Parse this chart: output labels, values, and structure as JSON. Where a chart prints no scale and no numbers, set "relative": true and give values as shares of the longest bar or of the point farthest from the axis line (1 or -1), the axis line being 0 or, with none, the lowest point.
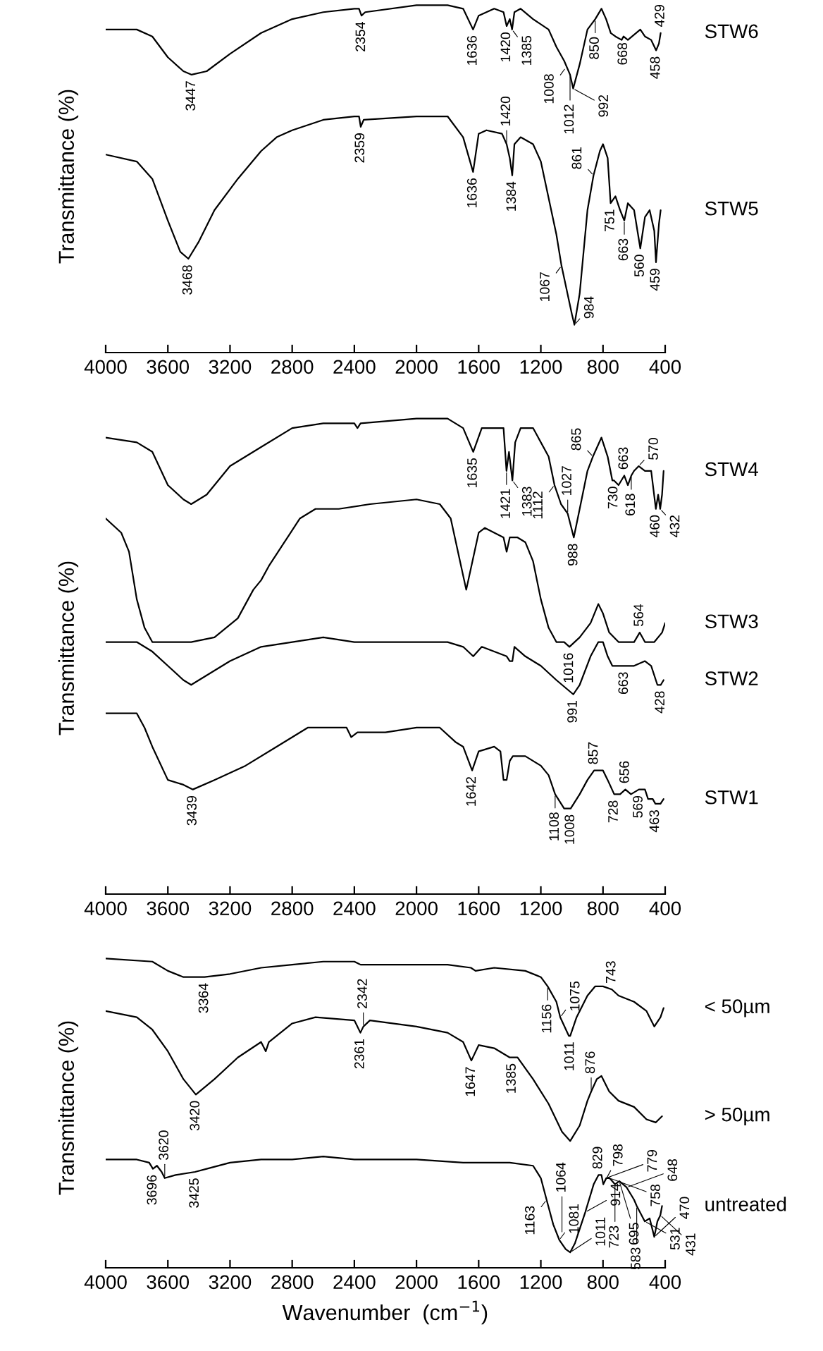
{
  "chart_data": [
    {
      "type": "line",
      "relative": true,
      "ylabel": "Transmittance (%)",
      "xlim": [
        4000,
        400
      ],
      "xticks": [
        4000,
        3600,
        3200,
        2800,
        2400,
        2000,
        1600,
        1200,
        800,
        400
      ],
      "tick_labels": "x",
      "series": [
        {
          "name": "STW6",
          "color": "#000000",
          "x": [
            4000,
            3800,
            3700,
            3600,
            3500,
            3447,
            3350,
            3200,
            3000,
            2800,
            2600,
            2400,
            2370,
            2354,
            2330,
            2000,
            1800,
            1700,
            1636,
            1600,
            1500,
            1440,
            1420,
            1400,
            1385,
            1370,
            1330,
            1250,
            1150,
            1100,
            1050,
            1012,
            992,
            950,
            900,
            850,
            810,
            780,
            750,
            720,
            680,
            668,
            640,
            560,
            530,
            490,
            458,
            440,
            429
          ],
          "values": [
            0.93,
            0.93,
            0.91,
            0.85,
            0.81,
            0.8,
            0.81,
            0.86,
            0.92,
            0.96,
            0.98,
            0.99,
            0.99,
            0.97,
            0.98,
            1.0,
            1.0,
            0.99,
            0.93,
            0.97,
            0.99,
            0.98,
            0.94,
            0.96,
            0.93,
            0.98,
            0.99,
            0.96,
            0.93,
            0.88,
            0.84,
            0.8,
            0.76,
            0.83,
            0.93,
            0.96,
            0.99,
            0.96,
            0.92,
            0.91,
            0.9,
            0.91,
            0.9,
            0.93,
            0.91,
            0.9,
            0.87,
            0.89,
            0.92
          ]
        },
        {
          "name": "STW5",
          "color": "#000000",
          "x": [
            4000,
            3800,
            3700,
            3600,
            3520,
            3468,
            3400,
            3300,
            3150,
            3000,
            2900,
            2800,
            2600,
            2400,
            2370,
            2359,
            2340,
            2000,
            1800,
            1700,
            1636,
            1600,
            1550,
            1450,
            1420,
            1400,
            1384,
            1370,
            1330,
            1250,
            1200,
            1100,
            1067,
            1000,
            984,
            950,
            900,
            861,
            820,
            800,
            770,
            751,
            720,
            690,
            663,
            640,
            600,
            560,
            530,
            500,
            470,
            459,
            440,
            429
          ],
          "values": [
            0.57,
            0.55,
            0.5,
            0.38,
            0.29,
            0.27,
            0.32,
            0.41,
            0.5,
            0.58,
            0.62,
            0.64,
            0.67,
            0.68,
            0.68,
            0.65,
            0.67,
            0.68,
            0.68,
            0.62,
            0.52,
            0.63,
            0.64,
            0.63,
            0.6,
            0.56,
            0.51,
            0.6,
            0.62,
            0.6,
            0.55,
            0.34,
            0.25,
            0.11,
            0.08,
            0.17,
            0.41,
            0.51,
            0.58,
            0.6,
            0.56,
            0.43,
            0.45,
            0.41,
            0.38,
            0.43,
            0.41,
            0.3,
            0.39,
            0.41,
            0.35,
            0.26,
            0.37,
            0.41
          ]
        }
      ],
      "annotations": [
        {
          "text": "3447",
          "x": 3447,
          "y": 0.8
        },
        {
          "text": "2354",
          "x": 2354,
          "y": 0.97
        },
        {
          "text": "1636",
          "x": 1636,
          "y": 0.93
        },
        {
          "text": "1420",
          "x": 1420,
          "y": 0.94
        },
        {
          "text": "1385",
          "x": 1385,
          "y": 0.93
        },
        {
          "text": "1008",
          "x": 1040,
          "y": 0.82
        },
        {
          "text": "1012",
          "x": 1012,
          "y": 0.8
        },
        {
          "text": "992",
          "x": 992,
          "y": 0.76
        },
        {
          "text": "850",
          "x": 850,
          "y": 0.96
        },
        {
          "text": "668",
          "x": 668,
          "y": 0.91
        },
        {
          "text": "458",
          "x": 458,
          "y": 0.87
        },
        {
          "text": "429",
          "x": 429,
          "y": 0.92
        },
        {
          "text": "3468",
          "x": 3468,
          "y": 0.27
        },
        {
          "text": "2359",
          "x": 2359,
          "y": 0.65
        },
        {
          "text": "1636",
          "x": 1636,
          "y": 0.52
        },
        {
          "text": "1420",
          "x": 1420,
          "y": 0.6
        },
        {
          "text": "1384",
          "x": 1384,
          "y": 0.51
        },
        {
          "text": "1067",
          "x": 1067,
          "y": 0.25
        },
        {
          "text": "984",
          "x": 984,
          "y": 0.08
        },
        {
          "text": "861",
          "x": 861,
          "y": 0.51
        },
        {
          "text": "751",
          "x": 751,
          "y": 0.43
        },
        {
          "text": "663",
          "x": 663,
          "y": 0.38
        },
        {
          "text": "560",
          "x": 560,
          "y": 0.3
        },
        {
          "text": "459",
          "x": 459,
          "y": 0.26
        }
      ]
    },
    {
      "type": "line",
      "relative": true,
      "ylabel": "Transmittance (%)",
      "xlim": [
        4000,
        400
      ],
      "xticks": [
        4000,
        3600,
        3200,
        2800,
        2400,
        2000,
        1600,
        1200,
        800,
        400
      ],
      "tick_labels": "x",
      "series": [
        {
          "name": "STW4",
          "color": "#000000",
          "x": [
            4000,
            3800,
            3700,
            3600,
            3500,
            3450,
            3350,
            3200,
            3000,
            2800,
            2600,
            2400,
            2380,
            2360,
            2000,
            1800,
            1700,
            1635,
            1580,
            1500,
            1440,
            1421,
            1405,
            1383,
            1365,
            1330,
            1250,
            1150,
            1112,
            1070,
            1027,
            988,
            950,
            900,
            865,
            810,
            770,
            740,
            730,
            700,
            663,
            640,
            618,
            600,
            570,
            530,
            490,
            460,
            445,
            432,
            420,
            410
          ],
          "values": [
            0.96,
            0.95,
            0.93,
            0.86,
            0.83,
            0.82,
            0.84,
            0.9,
            0.94,
            0.98,
            0.99,
            0.99,
            0.98,
            0.99,
            1.0,
            1.0,
            0.98,
            0.93,
            0.98,
            0.98,
            0.98,
            0.89,
            0.93,
            0.87,
            0.95,
            0.98,
            0.98,
            0.92,
            0.86,
            0.82,
            0.8,
            0.75,
            0.81,
            0.89,
            0.92,
            0.96,
            0.92,
            0.87,
            0.87,
            0.86,
            0.88,
            0.86,
            0.88,
            0.89,
            0.9,
            0.89,
            0.89,
            0.81,
            0.84,
            0.81,
            0.84,
            0.89
          ]
        },
        {
          "name": "STW3",
          "color": "#000000",
          "x": [
            4000,
            3900,
            3850,
            3800,
            3750,
            3700,
            3600,
            3450,
            3300,
            3150,
            3050,
            3000,
            2950,
            2850,
            2750,
            2650,
            2500,
            2300,
            2000,
            1850,
            1780,
            1720,
            1680,
            1640,
            1600,
            1560,
            1500,
            1440,
            1420,
            1400,
            1350,
            1300,
            1250,
            1200,
            1150,
            1100,
            1050,
            1016,
            950,
            880,
            830,
            800,
            760,
            700,
            600,
            564,
            530,
            470,
            420,
            400
          ],
          "values": [
            0.79,
            0.76,
            0.72,
            0.62,
            0.56,
            0.53,
            0.53,
            0.53,
            0.54,
            0.58,
            0.64,
            0.66,
            0.69,
            0.74,
            0.79,
            0.81,
            0.81,
            0.82,
            0.83,
            0.82,
            0.79,
            0.7,
            0.64,
            0.7,
            0.76,
            0.77,
            0.76,
            0.75,
            0.72,
            0.75,
            0.75,
            0.74,
            0.7,
            0.62,
            0.56,
            0.53,
            0.53,
            0.52,
            0.54,
            0.57,
            0.61,
            0.59,
            0.55,
            0.53,
            0.53,
            0.55,
            0.53,
            0.53,
            0.55,
            0.57
          ]
        },
        {
          "name": "STW2",
          "color": "#000000",
          "x": [
            4000,
            3800,
            3700,
            3600,
            3500,
            3450,
            3350,
            3200,
            3000,
            2800,
            2600,
            2400,
            2000,
            1800,
            1700,
            1635,
            1580,
            1500,
            1420,
            1400,
            1383,
            1370,
            1300,
            1200,
            1100,
            991,
            950,
            880,
            830,
            800,
            770,
            740,
            663,
            600,
            530,
            490,
            450,
            428,
            410
          ],
          "values": [
            0.53,
            0.53,
            0.51,
            0.48,
            0.45,
            0.44,
            0.46,
            0.49,
            0.52,
            0.53,
            0.54,
            0.53,
            0.53,
            0.53,
            0.52,
            0.5,
            0.52,
            0.51,
            0.5,
            0.49,
            0.49,
            0.52,
            0.5,
            0.48,
            0.45,
            0.42,
            0.44,
            0.5,
            0.53,
            0.53,
            0.5,
            0.48,
            0.48,
            0.48,
            0.49,
            0.48,
            0.44,
            0.44,
            0.45
          ]
        },
        {
          "name": "STW1",
          "color": "#000000",
          "x": [
            4000,
            3800,
            3750,
            3700,
            3600,
            3500,
            3439,
            3300,
            3100,
            2900,
            2700,
            2600,
            2450,
            2420,
            2380,
            2200,
            2000,
            1850,
            1750,
            1700,
            1642,
            1600,
            1500,
            1460,
            1440,
            1420,
            1400,
            1380,
            1300,
            1200,
            1150,
            1108,
            1050,
            1008,
            950,
            900,
            857,
            800,
            770,
            728,
            690,
            656,
            620,
            569,
            530,
            510,
            480,
            463,
            430,
            410
          ],
          "values": [
            0.38,
            0.38,
            0.35,
            0.31,
            0.24,
            0.23,
            0.22,
            0.24,
            0.27,
            0.31,
            0.35,
            0.35,
            0.35,
            0.33,
            0.34,
            0.34,
            0.35,
            0.35,
            0.32,
            0.31,
            0.26,
            0.3,
            0.31,
            0.3,
            0.24,
            0.24,
            0.28,
            0.29,
            0.29,
            0.27,
            0.25,
            0.21,
            0.18,
            0.18,
            0.21,
            0.24,
            0.26,
            0.26,
            0.24,
            0.21,
            0.21,
            0.22,
            0.21,
            0.22,
            0.22,
            0.2,
            0.2,
            0.19,
            0.19,
            0.2
          ]
        }
      ],
      "annotations": [
        {
          "text": "1635",
          "x": 1635,
          "y": 0.93
        },
        {
          "text": "1421",
          "x": 1421,
          "y": 0.89
        },
        {
          "text": "1383",
          "x": 1383,
          "y": 0.87
        },
        {
          "text": "1112",
          "x": 1112,
          "y": 0.86
        },
        {
          "text": "1027",
          "x": 1027,
          "y": 0.8
        },
        {
          "text": "988",
          "x": 988,
          "y": 0.75
        },
        {
          "text": "865",
          "x": 865,
          "y": 0.92
        },
        {
          "text": "730",
          "x": 730,
          "y": 0.87
        },
        {
          "text": "663",
          "x": 663,
          "y": 0.88
        },
        {
          "text": "618",
          "x": 618,
          "y": 0.88
        },
        {
          "text": "570",
          "x": 570,
          "y": 0.9
        },
        {
          "text": "460",
          "x": 460,
          "y": 0.81
        },
        {
          "text": "432",
          "x": 432,
          "y": 0.81
        },
        {
          "text": "1016",
          "x": 1016,
          "y": 0.52
        },
        {
          "text": "564",
          "x": 564,
          "y": 0.55
        },
        {
          "text": "991",
          "x": 991,
          "y": 0.42
        },
        {
          "text": "663",
          "x": 663,
          "y": 0.48
        },
        {
          "text": "428",
          "x": 428,
          "y": 0.44
        },
        {
          "text": "3439",
          "x": 3439,
          "y": 0.22
        },
        {
          "text": "1642",
          "x": 1642,
          "y": 0.26
        },
        {
          "text": "1108",
          "x": 1108,
          "y": 0.21
        },
        {
          "text": "1008",
          "x": 1008,
          "y": 0.18
        },
        {
          "text": "857",
          "x": 857,
          "y": 0.26
        },
        {
          "text": "728",
          "x": 728,
          "y": 0.21
        },
        {
          "text": "656",
          "x": 656,
          "y": 0.22
        },
        {
          "text": "569",
          "x": 569,
          "y": 0.22
        },
        {
          "text": "463",
          "x": 463,
          "y": 0.19
        }
      ]
    },
    {
      "type": "line",
      "relative": true,
      "ylabel": "Transmittance (%)",
      "xlabel": "Wavenumber  (cm$^{−1}$)",
      "xlim": [
        4000,
        400
      ],
      "xticks": [
        4000,
        3600,
        3200,
        2800,
        2400,
        2000,
        1600,
        1200,
        800,
        400
      ],
      "tick_labels": "x",
      "series": [
        {
          "name": "< 50µm",
          "color": "#000000",
          "x": [
            4000,
            3700,
            3600,
            3500,
            3364,
            3200,
            3000,
            2800,
            2600,
            2400,
            2360,
            2000,
            1800,
            1650,
            1620,
            1500,
            1300,
            1200,
            1156,
            1100,
            1075,
            1020,
            1011,
            970,
            900,
            850,
            800,
            743,
            700,
            600,
            520,
            470,
            430,
            410
          ],
          "values": [
            1.0,
            0.99,
            0.96,
            0.94,
            0.94,
            0.95,
            0.97,
            0.98,
            0.99,
            0.99,
            0.98,
            0.98,
            0.98,
            0.97,
            0.96,
            0.97,
            0.96,
            0.94,
            0.91,
            0.86,
            0.81,
            0.75,
            0.75,
            0.81,
            0.88,
            0.91,
            0.91,
            0.9,
            0.88,
            0.86,
            0.83,
            0.78,
            0.81,
            0.84
          ]
        },
        {
          "name": "> 50µm",
          "color": "#000000",
          "x": [
            4000,
            3800,
            3700,
            3600,
            3500,
            3420,
            3300,
            3150,
            3000,
            2970,
            2950,
            2800,
            2650,
            2400,
            2361,
            2342,
            2300,
            2000,
            1800,
            1700,
            1647,
            1600,
            1500,
            1400,
            1385,
            1350,
            1250,
            1150,
            1064,
            1011,
            950,
            900,
            876,
            840,
            810,
            760,
            700,
            600,
            520,
            460,
            420
          ],
          "values": [
            0.83,
            0.81,
            0.77,
            0.7,
            0.61,
            0.56,
            0.61,
            0.68,
            0.73,
            0.7,
            0.73,
            0.79,
            0.81,
            0.8,
            0.76,
            0.78,
            0.8,
            0.78,
            0.76,
            0.73,
            0.67,
            0.72,
            0.71,
            0.68,
            0.68,
            0.68,
            0.61,
            0.53,
            0.44,
            0.41,
            0.46,
            0.54,
            0.57,
            0.61,
            0.62,
            0.57,
            0.54,
            0.52,
            0.48,
            0.47,
            0.49
          ]
        },
        {
          "name": "untreated",
          "color": "#000000",
          "x": [
            4000,
            3800,
            3720,
            3696,
            3670,
            3640,
            3620,
            3550,
            3425,
            3350,
            3200,
            3000,
            2800,
            2600,
            2400,
            2000,
            1700,
            1630,
            1580,
            1400,
            1250,
            1200,
            1163,
            1120,
            1081,
            1040,
            1011,
            980,
            914,
            860,
            829,
            810,
            798,
            779,
            758,
            723,
            695,
            648,
            600,
            583,
            531,
            500,
            470,
            450,
            431,
            420
          ],
          "values": [
            0.35,
            0.35,
            0.34,
            0.32,
            0.33,
            0.31,
            0.29,
            0.3,
            0.31,
            0.32,
            0.34,
            0.35,
            0.35,
            0.36,
            0.35,
            0.35,
            0.34,
            0.34,
            0.34,
            0.34,
            0.33,
            0.29,
            0.22,
            0.14,
            0.09,
            0.06,
            0.05,
            0.08,
            0.18,
            0.27,
            0.3,
            0.3,
            0.27,
            0.29,
            0.29,
            0.27,
            0.28,
            0.26,
            0.22,
            0.2,
            0.15,
            0.16,
            0.1,
            0.15,
            0.17,
            0.2
          ]
        }
      ],
      "annotations": [
        {
          "text": "3364",
          "x": 3364,
          "y": 0.94
        },
        {
          "text": "1156",
          "x": 1156,
          "y": 0.91
        },
        {
          "text": "1075",
          "x": 1075,
          "y": 0.81
        },
        {
          "text": "1011",
          "x": 1011,
          "y": 0.75
        },
        {
          "text": "743",
          "x": 743,
          "y": 0.9
        },
        {
          "text": "3420",
          "x": 3420,
          "y": 0.56
        },
        {
          "text": "2361",
          "x": 2361,
          "y": 0.76
        },
        {
          "text": "2342",
          "x": 2342,
          "y": 0.78
        },
        {
          "text": "1647",
          "x": 1647,
          "y": 0.67
        },
        {
          "text": "1385",
          "x": 1385,
          "y": 0.68
        },
        {
          "text": "876",
          "x": 876,
          "y": 0.57
        },
        {
          "text": "3696",
          "x": 3696,
          "y": 0.32
        },
        {
          "text": "3620",
          "x": 3620,
          "y": 0.29
        },
        {
          "text": "3425",
          "x": 3425,
          "y": 0.31
        },
        {
          "text": "1163",
          "x": 1163,
          "y": 0.22
        },
        {
          "text": "1081",
          "x": 1081,
          "y": 0.09
        },
        {
          "text": "1011",
          "x": 1011,
          "y": 0.05
        },
        {
          "text": "1064",
          "x": 1064,
          "y": 0.11
        },
        {
          "text": "914",
          "x": 914,
          "y": 0.18
        },
        {
          "text": "829",
          "x": 829,
          "y": 0.3
        },
        {
          "text": "798",
          "x": 798,
          "y": 0.27
        },
        {
          "text": "779",
          "x": 779,
          "y": 0.29
        },
        {
          "text": "758",
          "x": 758,
          "y": 0.29
        },
        {
          "text": "723",
          "x": 723,
          "y": 0.27
        },
        {
          "text": "695",
          "x": 695,
          "y": 0.28
        },
        {
          "text": "648",
          "x": 648,
          "y": 0.26
        },
        {
          "text": "583",
          "x": 583,
          "y": 0.2
        },
        {
          "text": "531",
          "x": 531,
          "y": 0.15
        },
        {
          "text": "470",
          "x": 470,
          "y": 0.1
        },
        {
          "text": "431",
          "x": 431,
          "y": 0.17
        }
      ]
    }
  ]
}
